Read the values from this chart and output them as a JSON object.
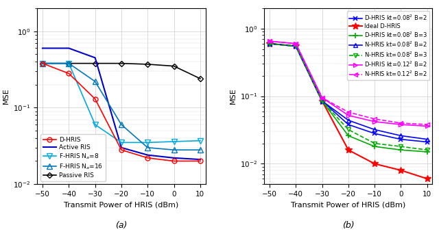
{
  "x": [
    -50,
    -40,
    -30,
    -20,
    -10,
    0,
    10
  ],
  "subplot_a": {
    "D_HRIS": [
      0.38,
      0.28,
      0.13,
      0.028,
      0.022,
      0.02,
      0.02
    ],
    "Active_RIS": [
      0.6,
      0.6,
      0.45,
      0.03,
      0.024,
      0.022,
      0.021
    ],
    "F_HRIS_8": [
      0.38,
      0.38,
      0.06,
      0.035,
      0.035,
      0.036,
      0.037
    ],
    "F_HRIS_16": [
      0.38,
      0.38,
      0.22,
      0.06,
      0.03,
      0.028,
      0.028
    ],
    "Passive_RIS": [
      0.38,
      0.38,
      0.38,
      0.38,
      0.37,
      0.35,
      0.24
    ]
  },
  "subplot_b": {
    "D_HRIS_kt008_B2": [
      0.6,
      0.55,
      0.085,
      0.038,
      0.028,
      0.023,
      0.021
    ],
    "Ideal_D_HRIS": [
      0.6,
      0.55,
      0.085,
      0.016,
      0.01,
      0.008,
      0.006
    ],
    "D_HRIS_kt008_B3": [
      0.6,
      0.55,
      0.085,
      0.026,
      0.018,
      0.016,
      0.015
    ],
    "N_HRIS_kt008_B2": [
      0.6,
      0.55,
      0.085,
      0.044,
      0.032,
      0.026,
      0.023
    ],
    "N_HRIS_kt008_B3": [
      0.6,
      0.55,
      0.085,
      0.032,
      0.02,
      0.018,
      0.016
    ],
    "D_HRIS_kt012_B2": [
      0.65,
      0.6,
      0.095,
      0.052,
      0.042,
      0.038,
      0.036
    ],
    "N_HRIS_kt012_B2": [
      0.65,
      0.6,
      0.095,
      0.058,
      0.046,
      0.04,
      0.038
    ]
  },
  "label_a": "(a)",
  "label_b": "(b)",
  "xlabel": "Transmit Power of HRIS (dBm)",
  "ylabel": "MSE",
  "fig_width": 6.4,
  "fig_height": 3.45,
  "dpi": 100
}
